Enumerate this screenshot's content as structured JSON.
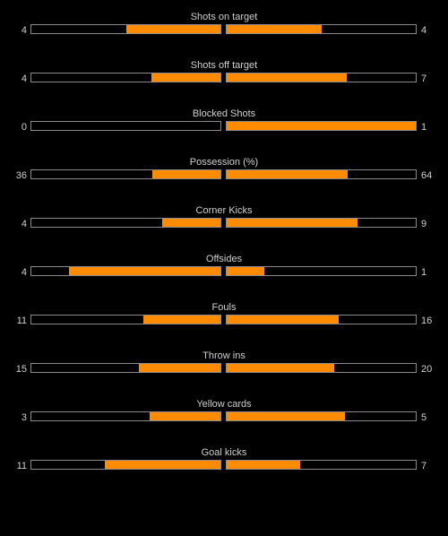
{
  "colors": {
    "background": "#000000",
    "bar_fill": "#ff8c00",
    "bar_border": "#8a8a8a",
    "text": "#cfcfcf"
  },
  "stats": [
    {
      "label": "Shots on target",
      "home": "4",
      "away": "4",
      "home_share": 0.5,
      "away_share": 0.5
    },
    {
      "label": "Shots off target",
      "home": "4",
      "away": "7",
      "home_share": 0.364,
      "away_share": 0.636
    },
    {
      "label": "Blocked Shots",
      "home": "0",
      "away": "1",
      "home_share": 0.0,
      "away_share": 1.0
    },
    {
      "label": "Possession (%)",
      "home": "36",
      "away": "64",
      "home_share": 0.36,
      "away_share": 0.64
    },
    {
      "label": "Corner Kicks",
      "home": "4",
      "away": "9",
      "home_share": 0.308,
      "away_share": 0.692
    },
    {
      "label": "Offsides",
      "home": "4",
      "away": "1",
      "home_share": 0.8,
      "away_share": 0.2
    },
    {
      "label": "Fouls",
      "home": "11",
      "away": "16",
      "home_share": 0.407,
      "away_share": 0.593
    },
    {
      "label": "Throw ins",
      "home": "15",
      "away": "20",
      "home_share": 0.429,
      "away_share": 0.571
    },
    {
      "label": "Yellow cards",
      "home": "3",
      "away": "5",
      "home_share": 0.375,
      "away_share": 0.625
    },
    {
      "label": "Goal kicks",
      "home": "11",
      "away": "7",
      "home_share": 0.611,
      "away_share": 0.389
    }
  ]
}
